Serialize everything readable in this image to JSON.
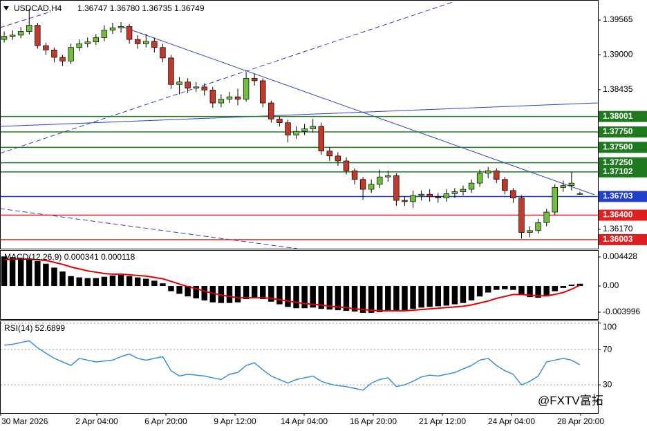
{
  "header": {
    "symbol": "USDCAD,H4",
    "quote": "1.36747 1.36780 1.36735 1.36749"
  },
  "watermark": "@FXTV富拓",
  "time_axis": [
    "30 Mar 2026",
    "2 Apr 04:00",
    "6 Apr 20:00",
    "9 Apr 12:00",
    "14 Apr 04:00",
    "16 Apr 20:00",
    "21 Apr 12:00",
    "24 Apr 04:00",
    "28 Apr 20:00"
  ],
  "chart_data": [
    {
      "type": "candlestick",
      "up_color": "#6fbf3f",
      "down_color": "#c0392b",
      "ylim": [
        1.35857,
        1.3989
      ],
      "yticks": [
        1.39565,
        {
          "value": 1.39,
          "label": "1.39000"
        },
        1.38435,
        {
          "value": 1.3617,
          "label": "1.36170"
        }
      ],
      "levels": [
        {
          "value": 1.38001,
          "label": "1.38001",
          "color": "#1f7a1f"
        },
        {
          "value": 1.3775,
          "label": "1.37750",
          "color": "#1f7a1f"
        },
        {
          "value": 1.375,
          "label": "1.37500",
          "color": "#1f7a1f"
        },
        {
          "value": 1.3725,
          "label": "1.37250",
          "color": "#1f7a1f"
        },
        {
          "value": 1.37102,
          "label": "1.37102",
          "color": "#1f7a1f"
        },
        {
          "value": 1.36703,
          "label": "1.36703",
          "color": "#1f3fcc"
        },
        {
          "value": 1.364,
          "label": "1.36400",
          "color": "#e02020"
        },
        {
          "value": 1.36003,
          "label": "1.36003",
          "color": "#e02020"
        }
      ],
      "ohlc": [
        [
          1.3925,
          1.3938,
          1.392,
          1.393
        ],
        [
          1.393,
          1.394,
          1.3924,
          1.3932
        ],
        [
          1.3932,
          1.3945,
          1.3927,
          1.3938
        ],
        [
          1.3938,
          1.3975,
          1.3933,
          1.3948
        ],
        [
          1.3948,
          1.3952,
          1.391,
          1.3915
        ],
        [
          1.3915,
          1.392,
          1.39,
          1.3908
        ],
        [
          1.3908,
          1.3912,
          1.3888,
          1.3896
        ],
        [
          1.3896,
          1.39,
          1.3882,
          1.389
        ],
        [
          1.389,
          1.3918,
          1.3885,
          1.3912
        ],
        [
          1.3912,
          1.3925,
          1.3906,
          1.3918
        ],
        [
          1.3918,
          1.3928,
          1.3912,
          1.3921
        ],
        [
          1.3921,
          1.3934,
          1.3916,
          1.3928
        ],
        [
          1.3928,
          1.3948,
          1.3922,
          1.394
        ],
        [
          1.394,
          1.3952,
          1.3934,
          1.3944
        ],
        [
          1.3944,
          1.3953,
          1.3936,
          1.3946
        ],
        [
          1.3946,
          1.395,
          1.3918,
          1.3925
        ],
        [
          1.3925,
          1.3932,
          1.391,
          1.3918
        ],
        [
          1.3918,
          1.3934,
          1.3912,
          1.3922
        ],
        [
          1.3922,
          1.3928,
          1.3904,
          1.3912
        ],
        [
          1.3912,
          1.3918,
          1.3888,
          1.3895
        ],
        [
          1.3895,
          1.39,
          1.3845,
          1.3852
        ],
        [
          1.3852,
          1.3864,
          1.3836,
          1.3856
        ],
        [
          1.3856,
          1.3862,
          1.3838,
          1.3846
        ],
        [
          1.3846,
          1.3856,
          1.384,
          1.3848
        ],
        [
          1.3848,
          1.3854,
          1.3834,
          1.3843
        ],
        [
          1.3843,
          1.3848,
          1.3814,
          1.3822
        ],
        [
          1.3822,
          1.3836,
          1.3815,
          1.3828
        ],
        [
          1.3828,
          1.384,
          1.3822,
          1.3832
        ],
        [
          1.3832,
          1.3845,
          1.3818,
          1.3828
        ],
        [
          1.3828,
          1.3872,
          1.3824,
          1.3862
        ],
        [
          1.3862,
          1.387,
          1.385,
          1.3858
        ],
        [
          1.3858,
          1.3862,
          1.3815,
          1.3822
        ],
        [
          1.3822,
          1.3826,
          1.379,
          1.3796
        ],
        [
          1.3796,
          1.38,
          1.3784,
          1.379
        ],
        [
          1.379,
          1.3795,
          1.3758,
          1.377
        ],
        [
          1.377,
          1.3784,
          1.3764,
          1.3776
        ],
        [
          1.3776,
          1.3788,
          1.377,
          1.378
        ],
        [
          1.378,
          1.3796,
          1.3774,
          1.3784
        ],
        [
          1.3784,
          1.379,
          1.3738,
          1.3744
        ],
        [
          1.3744,
          1.375,
          1.3728,
          1.3736
        ],
        [
          1.3736,
          1.3742,
          1.372,
          1.3728
        ],
        [
          1.3728,
          1.3734,
          1.3706,
          1.3712
        ],
        [
          1.3712,
          1.3716,
          1.369,
          1.3698
        ],
        [
          1.3698,
          1.3702,
          1.3665,
          1.3682
        ],
        [
          1.3682,
          1.3698,
          1.3676,
          1.369
        ],
        [
          1.369,
          1.3714,
          1.3684,
          1.3702
        ],
        [
          1.3702,
          1.3712,
          1.3694,
          1.3704
        ],
        [
          1.3704,
          1.3708,
          1.3655,
          1.3664
        ],
        [
          1.3664,
          1.367,
          1.3655,
          1.3662
        ],
        [
          1.3662,
          1.368,
          1.3652,
          1.3672
        ],
        [
          1.3672,
          1.368,
          1.3664,
          1.3674
        ],
        [
          1.3674,
          1.3682,
          1.3662,
          1.367
        ],
        [
          1.367,
          1.3676,
          1.366,
          1.3668
        ],
        [
          1.3668,
          1.3682,
          1.3662,
          1.3675
        ],
        [
          1.3675,
          1.3684,
          1.3668,
          1.3678
        ],
        [
          1.3678,
          1.3688,
          1.3672,
          1.3682
        ],
        [
          1.3682,
          1.3698,
          1.3676,
          1.3692
        ],
        [
          1.3692,
          1.3714,
          1.3686,
          1.3708
        ],
        [
          1.3708,
          1.3718,
          1.37,
          1.3712
        ],
        [
          1.3712,
          1.3716,
          1.3692,
          1.3698
        ],
        [
          1.3698,
          1.3702,
          1.3674,
          1.368
        ],
        [
          1.368,
          1.3684,
          1.366,
          1.3668
        ],
        [
          1.3668,
          1.3672,
          1.3602,
          1.3612
        ],
        [
          1.3612,
          1.3622,
          1.3604,
          1.3615
        ],
        [
          1.3615,
          1.3634,
          1.361,
          1.3628
        ],
        [
          1.3628,
          1.365,
          1.3622,
          1.3645
        ],
        [
          1.3645,
          1.369,
          1.364,
          1.3685
        ],
        [
          1.3685,
          1.3696,
          1.3678,
          1.3688
        ],
        [
          1.3688,
          1.371,
          1.368,
          1.3692
        ],
        [
          1.36747,
          1.3678,
          1.36735,
          1.36749
        ]
      ]
    },
    {
      "type": "macd",
      "title": "MACD(12,26,9) 0.000341 0.000118",
      "ylim": [
        -0.00506,
        0.00548
      ],
      "yticks": [
        0.004428,
        {
          "value": 0,
          "label": "0.00"
        },
        -0.003996
      ],
      "series": [
        {
          "color": "#000000",
          "values": [
            0.0045,
            0.0044,
            0.0043,
            0.0042,
            0.0038,
            0.0034,
            0.0028,
            0.0022,
            0.0015,
            0.0013,
            0.0012,
            0.0012,
            0.0014,
            0.0016,
            0.0017,
            0.0015,
            0.0013,
            0.0011,
            0.0008,
            0.0004,
            -0.0008,
            -0.0012,
            -0.0016,
            -0.0019,
            -0.0022,
            -0.0025,
            -0.0026,
            -0.0026,
            -0.0025,
            -0.002,
            -0.0018,
            -0.002,
            -0.0024,
            -0.0028,
            -0.0032,
            -0.0034,
            -0.0034,
            -0.0033,
            -0.0035,
            -0.0036,
            -0.0037,
            -0.0038,
            -0.0039,
            -0.0041,
            -0.0041,
            -0.004,
            -0.0038,
            -0.0038,
            -0.0037,
            -0.0035,
            -0.0033,
            -0.0032,
            -0.0031,
            -0.003,
            -0.0028,
            -0.0026,
            -0.0022,
            -0.0016,
            -0.001,
            -0.0006,
            -0.0005,
            -0.0006,
            -0.0014,
            -0.0017,
            -0.0018,
            -0.0016,
            -0.0008,
            -0.0003,
            0.0002,
            0.000341
          ]
        },
        {
          "color": "#e00000",
          "values": [
            0.004,
            0.0041,
            0.0041,
            0.0041,
            0.004,
            0.0039,
            0.0036,
            0.0033,
            0.0029,
            0.0026,
            0.0023,
            0.0021,
            0.0019,
            0.0018,
            0.0018,
            0.0017,
            0.0016,
            0.0015,
            0.0013,
            0.0011,
            0.0007,
            0.0003,
            -0.0001,
            -0.0004,
            -0.0008,
            -0.0011,
            -0.0014,
            -0.0016,
            -0.0018,
            -0.0018,
            -0.0018,
            -0.0018,
            -0.0019,
            -0.0021,
            -0.0023,
            -0.0025,
            -0.0027,
            -0.0028,
            -0.0029,
            -0.0031,
            -0.0032,
            -0.0033,
            -0.0035,
            -0.0036,
            -0.0037,
            -0.0038,
            -0.0038,
            -0.0038,
            -0.0038,
            -0.0037,
            -0.0036,
            -0.0035,
            -0.0034,
            -0.0033,
            -0.0032,
            -0.0031,
            -0.0029,
            -0.0026,
            -0.0023,
            -0.0019,
            -0.0016,
            -0.0013,
            -0.0013,
            -0.0014,
            -0.0015,
            -0.0015,
            -0.0013,
            -0.001,
            -0.0005,
            0.000118
          ]
        }
      ]
    },
    {
      "type": "line",
      "title": "RSI(14) 52.6899",
      "color": "#3b8fd9",
      "ylim": [
        -2,
        103
      ],
      "yticks": [
        100,
        70,
        30
      ],
      "values": [
        75,
        76,
        78,
        80,
        72,
        66,
        60,
        56,
        52,
        60,
        58,
        56,
        57,
        58,
        62,
        65,
        60,
        58,
        60,
        62,
        46,
        40,
        42,
        41,
        40,
        38,
        36,
        42,
        44,
        52,
        55,
        47,
        40,
        36,
        32,
        36,
        38,
        40,
        34,
        31,
        29,
        28,
        26,
        24,
        32,
        36,
        38,
        28,
        30,
        34,
        39,
        41,
        40,
        42,
        44,
        48,
        52,
        58,
        60,
        52,
        46,
        42,
        30,
        34,
        40,
        56,
        58,
        60,
        58,
        52.6899
      ]
    }
  ]
}
